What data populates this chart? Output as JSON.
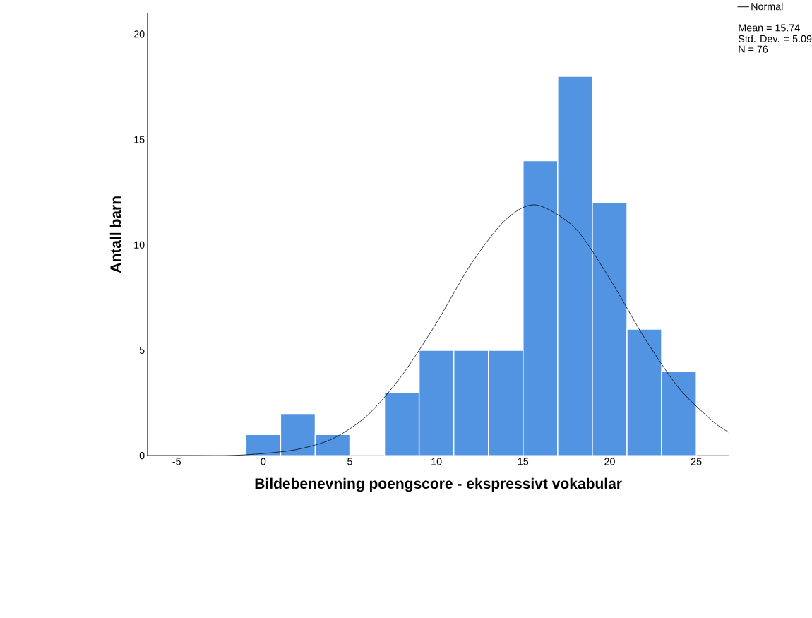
{
  "chart_data": {
    "type": "histogram",
    "xlabel": "Bildebenevning poengscore - ekspressivt vokabular",
    "ylabel": "Antall barn",
    "bins": [
      -1,
      1,
      3,
      5,
      7,
      9,
      11,
      13,
      15,
      17,
      19,
      21,
      23,
      25
    ],
    "values": [
      1,
      2,
      1,
      0,
      3,
      5,
      5,
      5,
      14,
      18,
      12,
      6,
      4
    ],
    "color": "#5294e2",
    "xlim": [
      -6.7,
      26.9
    ],
    "ylim": [
      0,
      21
    ],
    "xticks": [
      -5,
      0,
      5,
      10,
      15,
      20,
      25
    ],
    "yticks": [
      0,
      5,
      10,
      15,
      20
    ],
    "series": [
      {
        "type": "line",
        "name": "Normal",
        "color": "#000000",
        "x": [
          -6.7,
          -4,
          -2,
          0,
          2,
          4,
          6,
          8,
          10,
          12,
          14,
          15.74,
          18,
          20,
          22,
          24,
          26,
          26.9
        ],
        "values": [
          0,
          0,
          0,
          0.1,
          0.3,
          0.8,
          1.9,
          3.8,
          6.3,
          9.1,
          11.2,
          11.9,
          10.8,
          8.4,
          5.6,
          3.2,
          1.6,
          1.1
        ]
      }
    ],
    "legend": "top right",
    "annotations": [
      "Mean = 15.74",
      "Std. Dev. = 5.09",
      "N = 76"
    ]
  }
}
